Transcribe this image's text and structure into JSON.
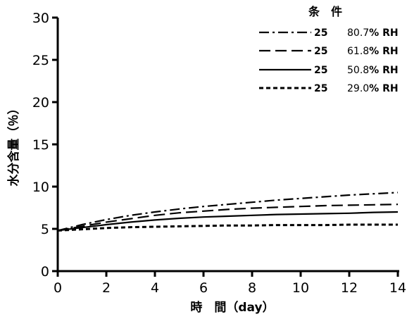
{
  "chart_data": {
    "type": "line",
    "title": "",
    "xlabel": "時　間（day）",
    "ylabel": "水分含量（％）",
    "xlim": [
      0,
      14
    ],
    "ylim": [
      0,
      30
    ],
    "x_ticks": [
      "0",
      "2",
      "4",
      "6",
      "8",
      "10",
      "12",
      "14"
    ],
    "y_ticks": [
      "0",
      "5",
      "10",
      "15",
      "20",
      "25",
      "30"
    ],
    "grid": false,
    "legend": {
      "title": "条　件",
      "placement": "top-right"
    },
    "series": [
      {
        "name": "25　80.7% RH",
        "temp": "25",
        "rh_value": "80.7",
        "rh_unit": "% RH",
        "line_style": "dash-dot",
        "x": [
          0,
          1,
          2,
          3,
          4,
          5,
          6,
          7,
          8,
          9,
          10,
          11,
          12,
          13,
          14
        ],
        "values": [
          4.8,
          5.5,
          6.1,
          6.6,
          7.0,
          7.35,
          7.65,
          7.9,
          8.15,
          8.4,
          8.6,
          8.8,
          9.0,
          9.15,
          9.3
        ]
      },
      {
        "name": "25　61.8% RH",
        "temp": "25",
        "rh_value": "61.8",
        "rh_unit": "% RH",
        "line_style": "dashed",
        "x": [
          0,
          1,
          2,
          3,
          4,
          5,
          6,
          7,
          8,
          9,
          10,
          11,
          12,
          13,
          14
        ],
        "values": [
          4.8,
          5.3,
          5.8,
          6.2,
          6.6,
          6.9,
          7.1,
          7.3,
          7.45,
          7.55,
          7.65,
          7.75,
          7.8,
          7.85,
          7.9
        ]
      },
      {
        "name": "25　50.8% RH",
        "temp": "25",
        "rh_value": "50.8",
        "rh_unit": "% RH",
        "line_style": "solid",
        "x": [
          0,
          1,
          2,
          3,
          4,
          5,
          6,
          7,
          8,
          9,
          10,
          11,
          12,
          13,
          14
        ],
        "values": [
          4.8,
          5.15,
          5.5,
          5.8,
          6.05,
          6.25,
          6.4,
          6.5,
          6.6,
          6.7,
          6.75,
          6.8,
          6.85,
          6.95,
          7.0
        ]
      },
      {
        "name": "25　29.0% RH",
        "temp": "25",
        "rh_value": "29.0",
        "rh_unit": "% RH",
        "line_style": "dotted",
        "x": [
          0,
          1,
          2,
          3,
          4,
          5,
          6,
          7,
          8,
          9,
          10,
          11,
          12,
          13,
          14
        ],
        "values": [
          4.8,
          4.95,
          5.1,
          5.2,
          5.25,
          5.3,
          5.35,
          5.4,
          5.4,
          5.45,
          5.45,
          5.45,
          5.5,
          5.5,
          5.5
        ]
      }
    ]
  },
  "colors": {
    "line": "#000000",
    "background": "#ffffff"
  }
}
